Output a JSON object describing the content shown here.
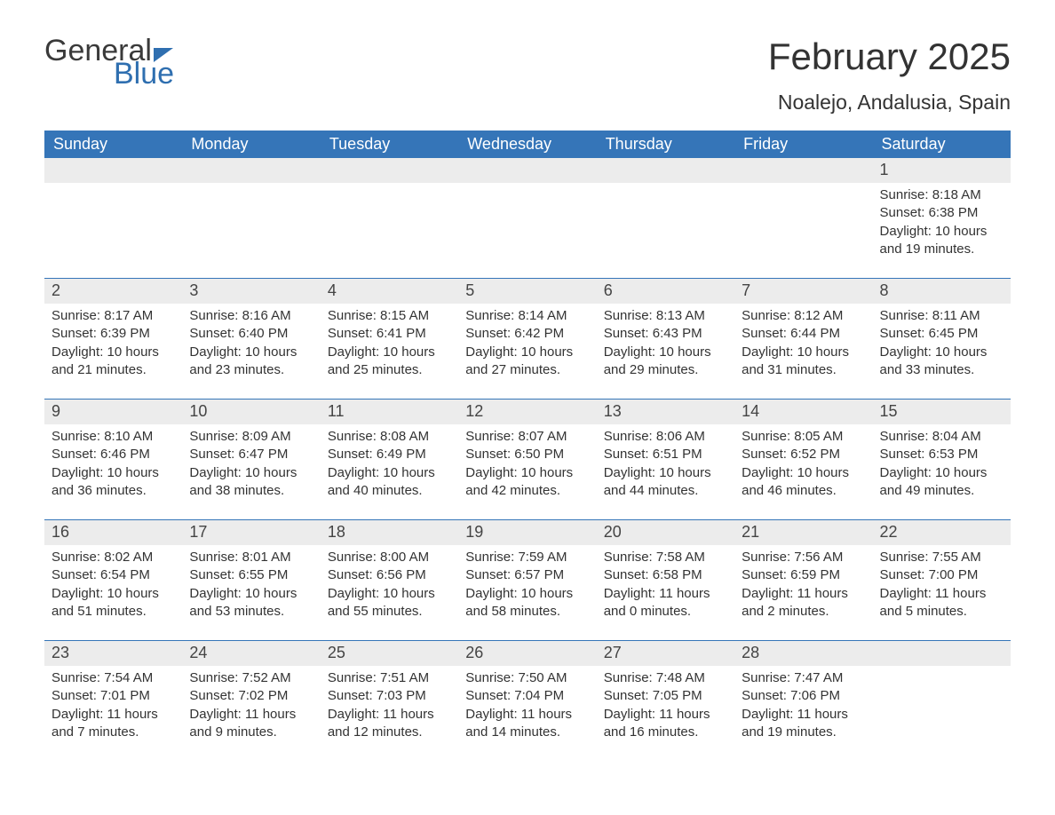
{
  "brand": {
    "text1": "General",
    "text2": "Blue"
  },
  "title": "February 2025",
  "location": "Noalejo, Andalusia, Spain",
  "colors": {
    "header_bg": "#3575b8",
    "header_text": "#ffffff",
    "daynum_bg": "#ececec",
    "text": "#333333",
    "logo_blue": "#2f6fb0"
  },
  "weekdays": [
    "Sunday",
    "Monday",
    "Tuesday",
    "Wednesday",
    "Thursday",
    "Friday",
    "Saturday"
  ],
  "weeks": [
    [
      {
        "num": "",
        "sunrise": "",
        "sunset": "",
        "daylight": ""
      },
      {
        "num": "",
        "sunrise": "",
        "sunset": "",
        "daylight": ""
      },
      {
        "num": "",
        "sunrise": "",
        "sunset": "",
        "daylight": ""
      },
      {
        "num": "",
        "sunrise": "",
        "sunset": "",
        "daylight": ""
      },
      {
        "num": "",
        "sunrise": "",
        "sunset": "",
        "daylight": ""
      },
      {
        "num": "",
        "sunrise": "",
        "sunset": "",
        "daylight": ""
      },
      {
        "num": "1",
        "sunrise": "Sunrise: 8:18 AM",
        "sunset": "Sunset: 6:38 PM",
        "daylight": "Daylight: 10 hours and 19 minutes."
      }
    ],
    [
      {
        "num": "2",
        "sunrise": "Sunrise: 8:17 AM",
        "sunset": "Sunset: 6:39 PM",
        "daylight": "Daylight: 10 hours and 21 minutes."
      },
      {
        "num": "3",
        "sunrise": "Sunrise: 8:16 AM",
        "sunset": "Sunset: 6:40 PM",
        "daylight": "Daylight: 10 hours and 23 minutes."
      },
      {
        "num": "4",
        "sunrise": "Sunrise: 8:15 AM",
        "sunset": "Sunset: 6:41 PM",
        "daylight": "Daylight: 10 hours and 25 minutes."
      },
      {
        "num": "5",
        "sunrise": "Sunrise: 8:14 AM",
        "sunset": "Sunset: 6:42 PM",
        "daylight": "Daylight: 10 hours and 27 minutes."
      },
      {
        "num": "6",
        "sunrise": "Sunrise: 8:13 AM",
        "sunset": "Sunset: 6:43 PM",
        "daylight": "Daylight: 10 hours and 29 minutes."
      },
      {
        "num": "7",
        "sunrise": "Sunrise: 8:12 AM",
        "sunset": "Sunset: 6:44 PM",
        "daylight": "Daylight: 10 hours and 31 minutes."
      },
      {
        "num": "8",
        "sunrise": "Sunrise: 8:11 AM",
        "sunset": "Sunset: 6:45 PM",
        "daylight": "Daylight: 10 hours and 33 minutes."
      }
    ],
    [
      {
        "num": "9",
        "sunrise": "Sunrise: 8:10 AM",
        "sunset": "Sunset: 6:46 PM",
        "daylight": "Daylight: 10 hours and 36 minutes."
      },
      {
        "num": "10",
        "sunrise": "Sunrise: 8:09 AM",
        "sunset": "Sunset: 6:47 PM",
        "daylight": "Daylight: 10 hours and 38 minutes."
      },
      {
        "num": "11",
        "sunrise": "Sunrise: 8:08 AM",
        "sunset": "Sunset: 6:49 PM",
        "daylight": "Daylight: 10 hours and 40 minutes."
      },
      {
        "num": "12",
        "sunrise": "Sunrise: 8:07 AM",
        "sunset": "Sunset: 6:50 PM",
        "daylight": "Daylight: 10 hours and 42 minutes."
      },
      {
        "num": "13",
        "sunrise": "Sunrise: 8:06 AM",
        "sunset": "Sunset: 6:51 PM",
        "daylight": "Daylight: 10 hours and 44 minutes."
      },
      {
        "num": "14",
        "sunrise": "Sunrise: 8:05 AM",
        "sunset": "Sunset: 6:52 PM",
        "daylight": "Daylight: 10 hours and 46 minutes."
      },
      {
        "num": "15",
        "sunrise": "Sunrise: 8:04 AM",
        "sunset": "Sunset: 6:53 PM",
        "daylight": "Daylight: 10 hours and 49 minutes."
      }
    ],
    [
      {
        "num": "16",
        "sunrise": "Sunrise: 8:02 AM",
        "sunset": "Sunset: 6:54 PM",
        "daylight": "Daylight: 10 hours and 51 minutes."
      },
      {
        "num": "17",
        "sunrise": "Sunrise: 8:01 AM",
        "sunset": "Sunset: 6:55 PM",
        "daylight": "Daylight: 10 hours and 53 minutes."
      },
      {
        "num": "18",
        "sunrise": "Sunrise: 8:00 AM",
        "sunset": "Sunset: 6:56 PM",
        "daylight": "Daylight: 10 hours and 55 minutes."
      },
      {
        "num": "19",
        "sunrise": "Sunrise: 7:59 AM",
        "sunset": "Sunset: 6:57 PM",
        "daylight": "Daylight: 10 hours and 58 minutes."
      },
      {
        "num": "20",
        "sunrise": "Sunrise: 7:58 AM",
        "sunset": "Sunset: 6:58 PM",
        "daylight": "Daylight: 11 hours and 0 minutes."
      },
      {
        "num": "21",
        "sunrise": "Sunrise: 7:56 AM",
        "sunset": "Sunset: 6:59 PM",
        "daylight": "Daylight: 11 hours and 2 minutes."
      },
      {
        "num": "22",
        "sunrise": "Sunrise: 7:55 AM",
        "sunset": "Sunset: 7:00 PM",
        "daylight": "Daylight: 11 hours and 5 minutes."
      }
    ],
    [
      {
        "num": "23",
        "sunrise": "Sunrise: 7:54 AM",
        "sunset": "Sunset: 7:01 PM",
        "daylight": "Daylight: 11 hours and 7 minutes."
      },
      {
        "num": "24",
        "sunrise": "Sunrise: 7:52 AM",
        "sunset": "Sunset: 7:02 PM",
        "daylight": "Daylight: 11 hours and 9 minutes."
      },
      {
        "num": "25",
        "sunrise": "Sunrise: 7:51 AM",
        "sunset": "Sunset: 7:03 PM",
        "daylight": "Daylight: 11 hours and 12 minutes."
      },
      {
        "num": "26",
        "sunrise": "Sunrise: 7:50 AM",
        "sunset": "Sunset: 7:04 PM",
        "daylight": "Daylight: 11 hours and 14 minutes."
      },
      {
        "num": "27",
        "sunrise": "Sunrise: 7:48 AM",
        "sunset": "Sunset: 7:05 PM",
        "daylight": "Daylight: 11 hours and 16 minutes."
      },
      {
        "num": "28",
        "sunrise": "Sunrise: 7:47 AM",
        "sunset": "Sunset: 7:06 PM",
        "daylight": "Daylight: 11 hours and 19 minutes."
      },
      {
        "num": "",
        "sunrise": "",
        "sunset": "",
        "daylight": ""
      }
    ]
  ]
}
